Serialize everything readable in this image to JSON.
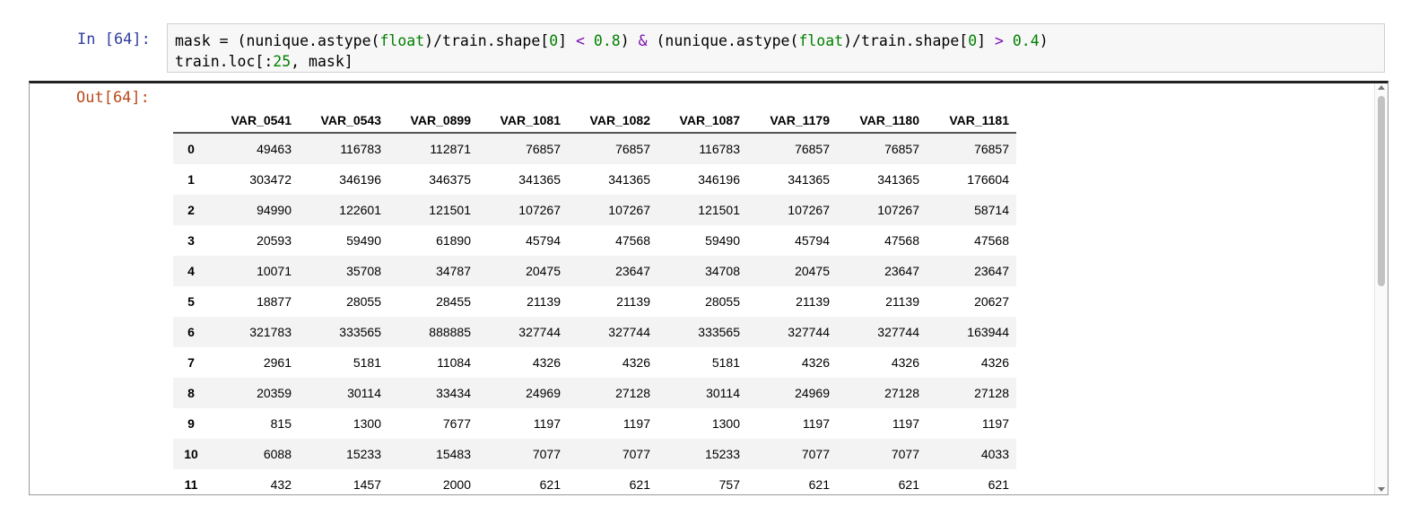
{
  "input_prompt": "In [64]:",
  "output_prompt": "Out[64]:",
  "code": {
    "line1": {
      "p1": "mask = (nunique.astype(",
      "k1": "float",
      "p2": ")/train.shape[",
      "n1": "0",
      "p3": "] ",
      "o1": "<",
      "p4": " ",
      "n2": "0.8",
      "p5": ") ",
      "o2": "&",
      "p6": " (nunique.astype(",
      "k2": "float",
      "p7": ")/train.shape[",
      "n3": "0",
      "p8": "] ",
      "o3": ">",
      "p9": " ",
      "n4": "0.4",
      "p10": ")"
    },
    "line2": {
      "p1": "train.loc[:",
      "n1": "25",
      "p2": ", mask]"
    }
  },
  "table": {
    "columns": [
      "VAR_0541",
      "VAR_0543",
      "VAR_0899",
      "VAR_1081",
      "VAR_1082",
      "VAR_1087",
      "VAR_1179",
      "VAR_1180",
      "VAR_1181"
    ],
    "rows": [
      {
        "index": "0",
        "values": [
          "49463",
          "116783",
          "112871",
          "76857",
          "76857",
          "116783",
          "76857",
          "76857",
          "76857"
        ]
      },
      {
        "index": "1",
        "values": [
          "303472",
          "346196",
          "346375",
          "341365",
          "341365",
          "346196",
          "341365",
          "341365",
          "176604"
        ]
      },
      {
        "index": "2",
        "values": [
          "94990",
          "122601",
          "121501",
          "107267",
          "107267",
          "121501",
          "107267",
          "107267",
          "58714"
        ]
      },
      {
        "index": "3",
        "values": [
          "20593",
          "59490",
          "61890",
          "45794",
          "47568",
          "59490",
          "45794",
          "47568",
          "47568"
        ]
      },
      {
        "index": "4",
        "values": [
          "10071",
          "35708",
          "34787",
          "20475",
          "23647",
          "34708",
          "20475",
          "23647",
          "23647"
        ]
      },
      {
        "index": "5",
        "values": [
          "18877",
          "28055",
          "28455",
          "21139",
          "21139",
          "28055",
          "21139",
          "21139",
          "20627"
        ]
      },
      {
        "index": "6",
        "values": [
          "321783",
          "333565",
          "888885",
          "327744",
          "327744",
          "333565",
          "327744",
          "327744",
          "163944"
        ]
      },
      {
        "index": "7",
        "values": [
          "2961",
          "5181",
          "11084",
          "4326",
          "4326",
          "5181",
          "4326",
          "4326",
          "4326"
        ]
      },
      {
        "index": "8",
        "values": [
          "20359",
          "30114",
          "33434",
          "24969",
          "27128",
          "30114",
          "24969",
          "27128",
          "27128"
        ]
      },
      {
        "index": "9",
        "values": [
          "815",
          "1300",
          "7677",
          "1197",
          "1197",
          "1300",
          "1197",
          "1197",
          "1197"
        ]
      },
      {
        "index": "10",
        "values": [
          "6088",
          "15233",
          "15483",
          "7077",
          "7077",
          "15233",
          "7077",
          "7077",
          "4033"
        ]
      },
      {
        "index": "11",
        "values": [
          "432",
          "1457",
          "2000",
          "621",
          "621",
          "757",
          "621",
          "621",
          "621"
        ]
      }
    ]
  }
}
